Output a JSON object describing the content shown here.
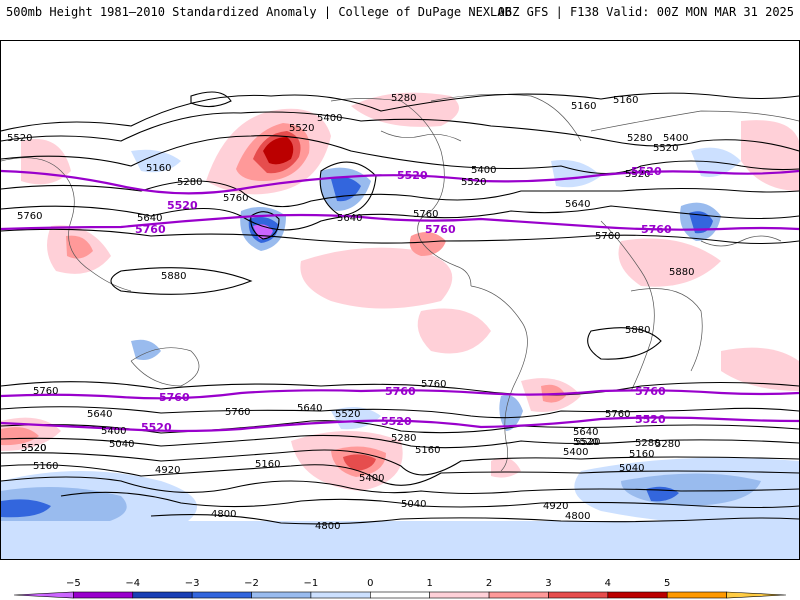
{
  "header": {
    "title": "500mb Height 1981–2010 Standardized Anomaly | College of DuPage NEXLAB",
    "run_info": "06Z GFS | F138 Valid: 00Z MON MAR 31 2025"
  },
  "map": {
    "thin_contour_labels": [
      "5280",
      "5160",
      "5400",
      "5520",
      "5640",
      "5760",
      "5880",
      "5040",
      "4920",
      "4800"
    ],
    "labels_north": [
      {
        "text": "5280"
      },
      {
        "text": "5160"
      },
      {
        "text": "5160"
      },
      {
        "text": "5400"
      },
      {
        "text": "5520"
      },
      {
        "text": "5520"
      },
      {
        "text": "5160"
      },
      {
        "text": "5280"
      },
      {
        "text": "5640"
      },
      {
        "text": "5760"
      },
      {
        "text": "5640"
      },
      {
        "text": "5760"
      },
      {
        "text": "5520"
      },
      {
        "text": "5400"
      },
      {
        "text": "5280"
      },
      {
        "text": "5400"
      },
      {
        "text": "5520"
      },
      {
        "text": "5640"
      },
      {
        "text": "5760"
      },
      {
        "text": "5880"
      },
      {
        "text": "5880"
      },
      {
        "text": "5880"
      },
      {
        "text": "5520"
      },
      {
        "text": "5760"
      }
    ],
    "labels_south": [
      {
        "text": "5760"
      },
      {
        "text": "5640"
      },
      {
        "text": "5400"
      },
      {
        "text": "5520"
      },
      {
        "text": "5040"
      },
      {
        "text": "5160"
      },
      {
        "text": "4920"
      },
      {
        "text": "4800"
      },
      {
        "text": "4800"
      },
      {
        "text": "5760"
      },
      {
        "text": "5760"
      },
      {
        "text": "5640"
      },
      {
        "text": "5520"
      },
      {
        "text": "5280"
      },
      {
        "text": "5160"
      },
      {
        "text": "5400"
      },
      {
        "text": "5040"
      },
      {
        "text": "5160"
      },
      {
        "text": "4920"
      },
      {
        "text": "4800"
      },
      {
        "text": "5640"
      },
      {
        "text": "5520"
      },
      {
        "text": "5400"
      },
      {
        "text": "5280"
      },
      {
        "text": "5160"
      },
      {
        "text": "5040"
      },
      {
        "text": "5760"
      },
      {
        "text": "5520"
      },
      {
        "text": "5280"
      },
      {
        "text": "5520"
      }
    ],
    "highlight_labels": [
      {
        "text": "5520"
      },
      {
        "text": "5520"
      },
      {
        "text": "5520"
      },
      {
        "text": "5760"
      },
      {
        "text": "5760"
      },
      {
        "text": "5760"
      },
      {
        "text": "5760"
      },
      {
        "text": "5760"
      },
      {
        "text": "5760"
      },
      {
        "text": "5520"
      },
      {
        "text": "5520"
      },
      {
        "text": "5520"
      }
    ],
    "colors": {
      "highlight_contour": "#9900cc",
      "contour": "#000000",
      "coast": "#555555"
    }
  },
  "colorbar": {
    "ticks": [
      "−5",
      "−4",
      "−3",
      "−2",
      "−1",
      "0",
      "1",
      "2",
      "3",
      "4",
      "5"
    ],
    "bins": [
      "#cc66ff",
      "#9900cc",
      "#1a3fb5",
      "#3366dd",
      "#99bbee",
      "#cce0ff",
      "#ffffff",
      "#ffd0d8",
      "#ff9999",
      "#e64d4d",
      "#bb0000",
      "#ff9900",
      "#ffcc44"
    ]
  }
}
